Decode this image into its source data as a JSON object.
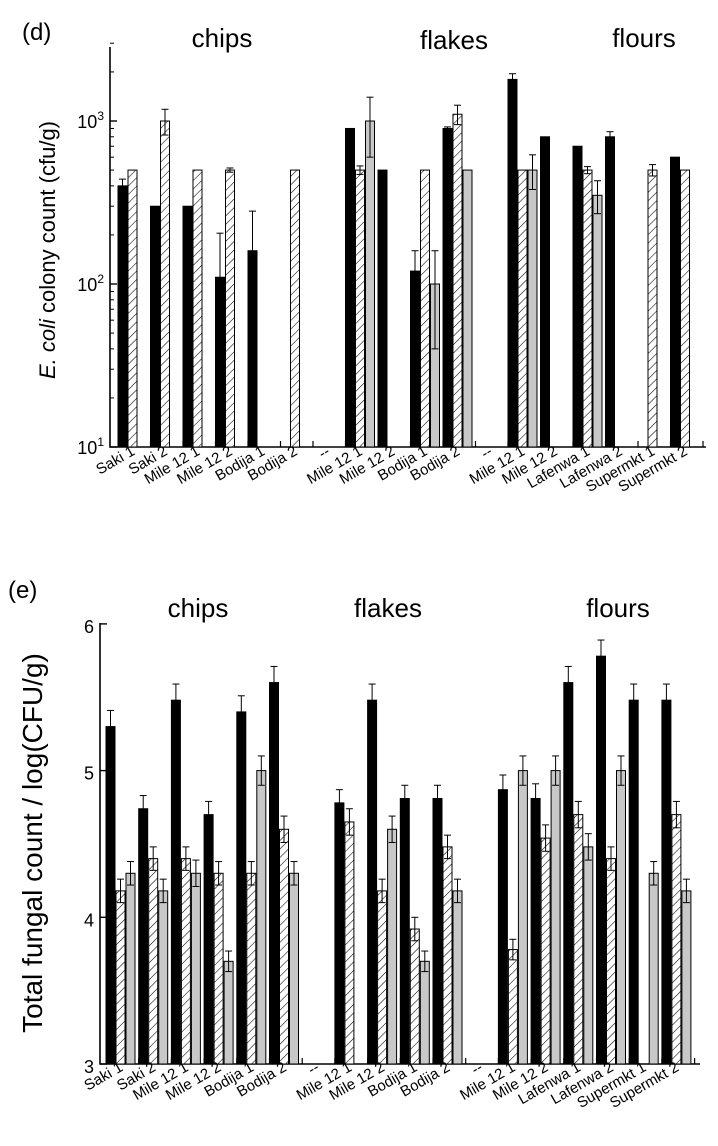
{
  "chart_data": [
    {
      "panel": "(d)",
      "type": "bar",
      "yscale": "log",
      "ylim": [
        10,
        3000
      ],
      "yticks": [
        10,
        100,
        1000
      ],
      "ylabel_italic": "E. coli",
      "ylabel_rest": " colony count (cfu/g)",
      "group_labels": [
        "chips",
        "flakes",
        "flours"
      ],
      "categories": [
        "Saki 1",
        "Saki 2",
        "Mile 12 1",
        "Mile 12 2",
        "Bodija 1",
        "Bodija 2",
        "--",
        "Mile 12 1",
        "Mile 12 2",
        "Bodija 1",
        "Bodija 2",
        "--",
        "Mile 12 1",
        "Mile 12 2",
        "Lafenwa 1",
        "Lafenwa 2",
        "Supermkt 1",
        "Supermkt 2"
      ],
      "series": [
        {
          "style": "black",
          "values": [
            400,
            300,
            300,
            110,
            160,
            null,
            null,
            900,
            500,
            120,
            900,
            null,
            1800,
            800,
            700,
            800,
            null,
            600
          ],
          "errors": [
            40,
            0,
            0,
            95,
            120,
            null,
            null,
            0,
            0,
            40,
            20,
            null,
            150,
            0,
            0,
            60,
            null,
            0
          ]
        },
        {
          "style": "hatched",
          "values": [
            500,
            1000,
            500,
            500,
            null,
            500,
            null,
            500,
            null,
            500,
            1100,
            null,
            500,
            null,
            500,
            null,
            500,
            500
          ],
          "errors": [
            0,
            180,
            0,
            15,
            null,
            0,
            null,
            30,
            null,
            0,
            150,
            null,
            0,
            null,
            25,
            null,
            40,
            0
          ]
        },
        {
          "style": "gray",
          "values": [
            null,
            null,
            null,
            null,
            null,
            null,
            null,
            1000,
            null,
            100,
            500,
            null,
            500,
            null,
            350,
            null,
            null,
            null
          ],
          "errors": [
            null,
            null,
            null,
            null,
            null,
            null,
            null,
            400,
            null,
            60,
            0,
            null,
            120,
            null,
            80,
            null,
            null,
            null
          ]
        }
      ]
    },
    {
      "panel": "(e)",
      "type": "bar",
      "ylim": [
        3,
        6
      ],
      "yticks": [
        3,
        4,
        5,
        6
      ],
      "ylabel": "Total fungal count / log(CFU/g)",
      "group_labels": [
        "chips",
        "flakes",
        "flours"
      ],
      "categories": [
        "Saki 1",
        "Saki 2",
        "Mile 12 1",
        "Mile 12 2",
        "Bodija 1",
        "Bodija 2",
        "--",
        "Mile 12 1",
        "Mile 12 2",
        "Bodija 1",
        "Bodija 2",
        "--",
        "Mile 12 1",
        "Mile 12 2",
        "Lafenwa 1",
        "Lafenwa 2",
        "Supermkt 1",
        "Supermkt 2"
      ],
      "series": [
        {
          "style": "black",
          "values": [
            5.3,
            4.74,
            5.48,
            4.7,
            5.4,
            5.6,
            null,
            4.78,
            5.48,
            4.81,
            4.81,
            null,
            4.87,
            4.81,
            5.6,
            5.78,
            5.48,
            5.48
          ],
          "errors": [
            0.11,
            0.09,
            0.11,
            0.09,
            0.11,
            0.11,
            null,
            0.09,
            0.11,
            0.09,
            0.09,
            null,
            0.1,
            0.1,
            0.11,
            0.11,
            0.11,
            0.11
          ]
        },
        {
          "style": "hatched",
          "values": [
            4.18,
            4.4,
            4.4,
            4.3,
            4.3,
            4.6,
            null,
            4.65,
            4.18,
            3.92,
            4.48,
            null,
            3.78,
            4.54,
            4.7,
            4.4,
            null,
            4.7
          ],
          "errors": [
            0.08,
            0.08,
            0.08,
            0.08,
            0.08,
            0.09,
            null,
            0.09,
            0.08,
            0.08,
            0.08,
            null,
            0.07,
            0.09,
            0.09,
            0.08,
            null,
            0.09
          ]
        },
        {
          "style": "gray",
          "values": [
            4.3,
            4.18,
            4.3,
            3.7,
            5.0,
            4.3,
            null,
            null,
            4.6,
            3.7,
            4.18,
            null,
            5.0,
            5.0,
            4.48,
            5.0,
            4.3,
            4.18
          ],
          "errors": [
            0.08,
            0.08,
            0.09,
            0.07,
            0.1,
            0.08,
            null,
            null,
            0.09,
            0.07,
            0.08,
            null,
            0.1,
            0.1,
            0.09,
            0.1,
            0.08,
            0.08
          ]
        }
      ]
    }
  ]
}
